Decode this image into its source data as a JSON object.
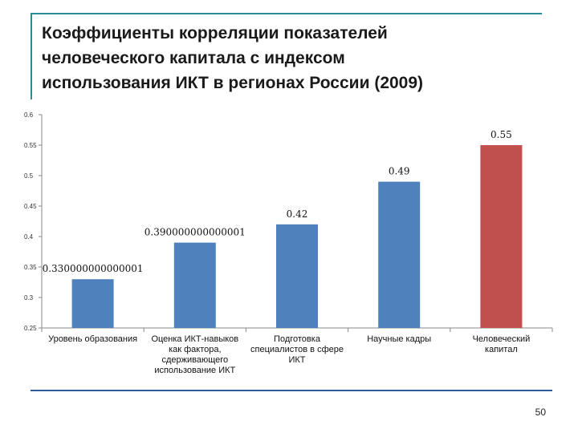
{
  "slide": {
    "title": "Коэффициенты корреляции показателей\nчеловеческого капитала с индексом\nиспользования ИКТ  в регионах России (2009)",
    "page_number": "50"
  },
  "colors": {
    "bar": "#4f81bd",
    "highlight": "#c0504d",
    "accent_rule": "#2e8b9a"
  },
  "chart_data": {
    "type": "bar",
    "title": "",
    "xlabel": "",
    "ylabel": "",
    "ylim": [
      0.25,
      0.6
    ],
    "yticks": [
      "0.25",
      "0.3",
      "0.35",
      "0.4",
      "0.45",
      "0.5",
      "0.55",
      "0.6"
    ],
    "ytick_values": [
      0.25,
      0.3,
      0.35,
      0.4,
      0.45,
      0.5,
      0.55,
      0.6
    ],
    "grid": false,
    "categories": [
      [
        "Уровень образования"
      ],
      [
        "Оценка ИКТ-навыков",
        "как фактора,",
        "сдерживающего",
        "использование ИКТ"
      ],
      [
        "Подготовка",
        "специалистов в сфере",
        "ИКТ"
      ],
      [
        "Научные кадры"
      ],
      [
        "Человеческий",
        "капитал"
      ]
    ],
    "values": [
      0.33,
      0.39,
      0.42,
      0.49,
      0.55
    ],
    "data_labels": [
      "0.330000000000001",
      "0.390000000000001",
      "0.42",
      "0.49",
      "0.55"
    ],
    "highlight_index": 4
  }
}
